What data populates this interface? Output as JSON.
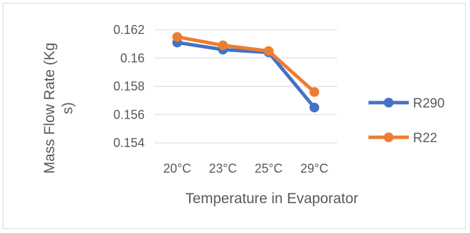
{
  "chart_data": {
    "type": "line",
    "title": "",
    "xlabel": "Temperature in Evaporator",
    "ylabel": "Mass Flow Rate (Kg s)",
    "ylabel_lines": [
      "Mass Flow Rate (Kg",
      "s)"
    ],
    "categories": [
      "20°C",
      "23°C",
      "25°C",
      "29°C"
    ],
    "ylim": [
      0.154,
      0.162
    ],
    "yticks": [
      0.154,
      0.156,
      0.158,
      0.16,
      0.162
    ],
    "ytick_labels": [
      "0.154",
      "0.156",
      "0.158",
      "0.16",
      "0.162"
    ],
    "grid": true,
    "legend_position": "right",
    "series": [
      {
        "name": "R290",
        "values": [
          0.1611,
          0.1606,
          0.1604,
          0.1565
        ],
        "color": "#4472C4"
      },
      {
        "name": "R22",
        "values": [
          0.1615,
          0.1609,
          0.1605,
          0.1576
        ],
        "color": "#ED7D31"
      }
    ]
  }
}
